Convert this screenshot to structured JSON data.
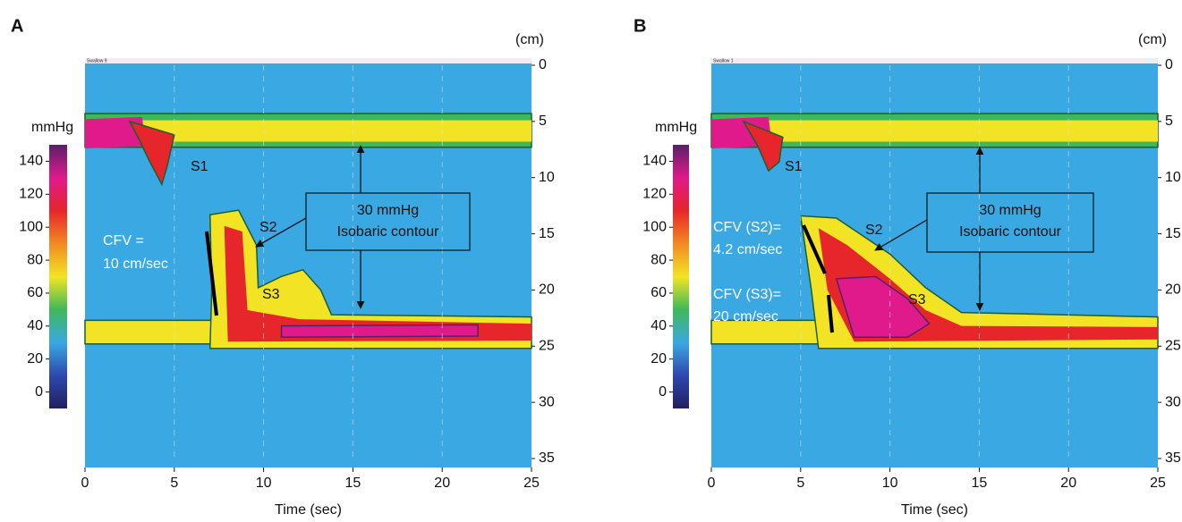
{
  "chart_data": [
    {
      "type": "pressure-topography",
      "panel_label": "A",
      "header_text": "Swallow 9",
      "xlabel": "Time (sec)",
      "y_unit": "(cm)",
      "xlim": [
        0,
        25
      ],
      "xticks": [
        0,
        5,
        10,
        15,
        20,
        25
      ],
      "ylim": [
        0,
        35
      ],
      "y_inverted": true,
      "yticks": [
        0,
        5,
        10,
        15,
        20,
        25,
        30,
        35
      ],
      "grid": true,
      "colorbar": {
        "label": "mmHg",
        "lim": [
          -10,
          150
        ],
        "ticks": [
          0,
          20,
          40,
          60,
          80,
          100,
          120,
          140
        ],
        "colors": [
          "#22205e",
          "#2e48b0",
          "#3aa8e2",
          "#3fb85a",
          "#f2e424",
          "#f28a22",
          "#e6262a",
          "#e01a8a",
          "#5a1f6a"
        ]
      },
      "segment_labels": [
        "S1",
        "S2",
        "S3"
      ],
      "box_text": [
        "30 mmHg",
        "Isobaric contour"
      ],
      "cfv_text": [
        [
          "CFV =",
          "10 cm/sec"
        ]
      ]
    },
    {
      "type": "pressure-topography",
      "panel_label": "B",
      "header_text": "Swallow 1",
      "xlabel": "Time (sec)",
      "y_unit": "(cm)",
      "xlim": [
        0,
        25
      ],
      "xticks": [
        0,
        5,
        10,
        15,
        20,
        25
      ],
      "ylim": [
        0,
        35
      ],
      "y_inverted": true,
      "yticks": [
        0,
        5,
        10,
        15,
        20,
        25,
        30,
        35
      ],
      "grid": true,
      "colorbar": {
        "label": "mmHg",
        "lim": [
          -10,
          150
        ],
        "ticks": [
          0,
          20,
          40,
          60,
          80,
          100,
          120,
          140
        ],
        "colors": [
          "#22205e",
          "#2e48b0",
          "#3aa8e2",
          "#3fb85a",
          "#f2e424",
          "#f28a22",
          "#e6262a",
          "#e01a8a",
          "#5a1f6a"
        ]
      },
      "segment_labels": [
        "S1",
        "S2",
        "S3"
      ],
      "box_text": [
        "30 mmHg",
        "Isobaric contour"
      ],
      "cfv_text": [
        [
          "CFV (S2)=",
          "4.2 cm/sec"
        ],
        [
          "CFV (S3)=",
          "20 cm/sec"
        ]
      ]
    }
  ]
}
